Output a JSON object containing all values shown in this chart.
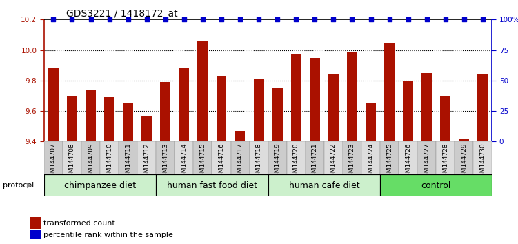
{
  "title": "GDS3221 / 1418172_at",
  "samples": [
    "GSM144707",
    "GSM144708",
    "GSM144709",
    "GSM144710",
    "GSM144711",
    "GSM144712",
    "GSM144713",
    "GSM144714",
    "GSM144715",
    "GSM144716",
    "GSM144717",
    "GSM144718",
    "GSM144719",
    "GSM144720",
    "GSM144721",
    "GSM144722",
    "GSM144723",
    "GSM144724",
    "GSM144725",
    "GSM144726",
    "GSM144727",
    "GSM144728",
    "GSM144729",
    "GSM144730"
  ],
  "values": [
    9.88,
    9.7,
    9.74,
    9.69,
    9.65,
    9.57,
    9.79,
    9.88,
    10.06,
    9.83,
    9.47,
    9.81,
    9.75,
    9.97,
    9.95,
    9.84,
    9.99,
    9.65,
    10.05,
    9.8,
    9.85,
    9.7,
    9.42,
    9.84
  ],
  "groups": [
    {
      "label": "chimpanzee diet",
      "start": 0,
      "end": 6
    },
    {
      "label": "human fast food diet",
      "start": 6,
      "end": 12
    },
    {
      "label": "human cafe diet",
      "start": 12,
      "end": 18
    },
    {
      "label": "control",
      "start": 18,
      "end": 24
    }
  ],
  "group_colors": [
    "#ccf0cc",
    "#ccf0cc",
    "#ccf0cc",
    "#66dd66"
  ],
  "bar_color": "#AA1100",
  "scatter_color": "#0000CC",
  "ylim_left": [
    9.4,
    10.2
  ],
  "ylim_right": [
    0,
    100
  ],
  "yticks_left": [
    9.4,
    9.6,
    9.8,
    10.0,
    10.2
  ],
  "yticks_right": [
    0,
    25,
    50,
    75,
    100
  ],
  "ytick_labels_right": [
    "0",
    "25",
    "50",
    "75",
    "100%"
  ],
  "grid_values": [
    9.6,
    9.8,
    10.0
  ],
  "protocol_label": "protocol",
  "legend_items": [
    {
      "color": "#AA1100",
      "label": "transformed count"
    },
    {
      "color": "#0000CC",
      "label": "percentile rank within the sample"
    }
  ],
  "background_color": "#ffffff",
  "title_fontsize": 10,
  "tick_fontsize": 7.5,
  "group_fontsize": 9,
  "label_fontsize": 6.5
}
